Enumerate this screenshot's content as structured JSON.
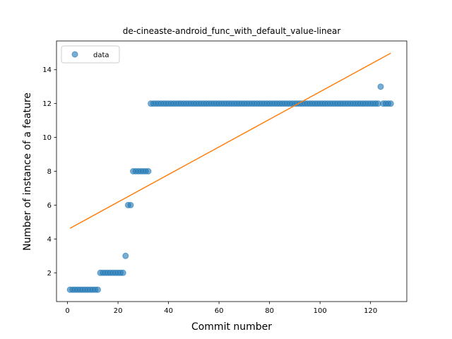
{
  "chart_data": {
    "type": "scatter",
    "title": "de-cineaste-android_func_with_default_value-linear",
    "xlabel": "Commit number",
    "ylabel": "Number of instance of a feature",
    "xlim": [
      -4.35,
      134.35
    ],
    "ylim": [
      0.3,
      15.7
    ],
    "xticks": [
      0,
      20,
      40,
      60,
      80,
      100,
      120
    ],
    "yticks": [
      2,
      4,
      6,
      8,
      10,
      12,
      14
    ],
    "legend": {
      "placement": "top-left",
      "entries": [
        "data"
      ]
    },
    "grid": false,
    "series": [
      {
        "name": "data",
        "kind": "scatter",
        "color": "#1f77b4",
        "x": [
          1,
          2,
          3,
          4,
          5,
          6,
          7,
          8,
          9,
          10,
          11,
          12,
          13,
          14,
          15,
          16,
          17,
          18,
          19,
          20,
          21,
          22,
          23,
          24,
          25,
          26,
          27,
          28,
          29,
          30,
          31,
          32,
          33,
          34,
          35,
          36,
          37,
          38,
          39,
          40,
          41,
          42,
          43,
          44,
          45,
          46,
          47,
          48,
          49,
          50,
          51,
          52,
          53,
          54,
          55,
          56,
          57,
          58,
          59,
          60,
          61,
          62,
          63,
          64,
          65,
          66,
          67,
          68,
          69,
          70,
          71,
          72,
          73,
          74,
          75,
          76,
          77,
          78,
          79,
          80,
          81,
          82,
          83,
          84,
          85,
          86,
          87,
          88,
          89,
          90,
          91,
          92,
          93,
          94,
          95,
          96,
          97,
          98,
          99,
          100,
          101,
          102,
          103,
          104,
          105,
          106,
          107,
          108,
          109,
          110,
          111,
          112,
          113,
          114,
          115,
          116,
          117,
          118,
          119,
          120,
          121,
          122,
          123,
          124,
          125,
          126,
          127,
          128
        ],
        "y": [
          1,
          1,
          1,
          1,
          1,
          1,
          1,
          1,
          1,
          1,
          1,
          1,
          2,
          2,
          2,
          2,
          2,
          2,
          2,
          2,
          2,
          2,
          3,
          6,
          6,
          8,
          8,
          8,
          8,
          8,
          8,
          8,
          12,
          12,
          12,
          12,
          12,
          12,
          12,
          12,
          12,
          12,
          12,
          12,
          12,
          12,
          12,
          12,
          12,
          12,
          12,
          12,
          12,
          12,
          12,
          12,
          12,
          12,
          12,
          12,
          12,
          12,
          12,
          12,
          12,
          12,
          12,
          12,
          12,
          12,
          12,
          12,
          12,
          12,
          12,
          12,
          12,
          12,
          12,
          12,
          12,
          12,
          12,
          12,
          12,
          12,
          12,
          12,
          12,
          12,
          12,
          12,
          12,
          12,
          12,
          12,
          12,
          12,
          12,
          12,
          12,
          12,
          12,
          12,
          12,
          12,
          12,
          12,
          12,
          12,
          12,
          12,
          12,
          12,
          12,
          12,
          12,
          12,
          12,
          12,
          12,
          12,
          12,
          13,
          12,
          12,
          12,
          12
        ]
      },
      {
        "kind": "line",
        "color": "#ff7f0e",
        "x": [
          1,
          128
        ],
        "y": [
          4.63,
          14.98
        ]
      }
    ]
  }
}
